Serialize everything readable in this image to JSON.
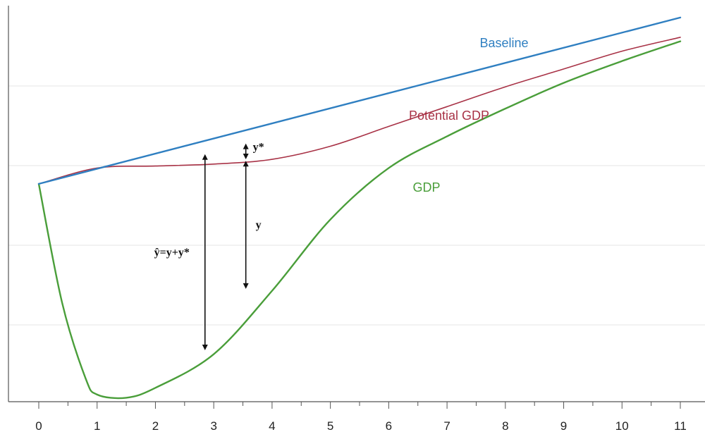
{
  "chart_data": {
    "type": "line",
    "title": "",
    "xlabel": "",
    "ylabel": "",
    "xlim": [
      0,
      11
    ],
    "ylim": [
      0,
      100
    ],
    "grid": true,
    "x_ticks": [
      "0",
      "1",
      "2",
      "3",
      "4",
      "5",
      "6",
      "7",
      "8",
      "9",
      "10",
      "11"
    ],
    "series": [
      {
        "name": "Baseline",
        "color": "#2f7fc1",
        "points": [
          [
            0,
            55
          ],
          [
            11,
            97
          ]
        ]
      },
      {
        "name": "Potential GDP",
        "color": "#a83246",
        "points": [
          [
            0,
            55
          ],
          [
            1,
            59
          ],
          [
            2,
            59.5
          ],
          [
            3,
            60
          ],
          [
            4,
            61.2
          ],
          [
            5,
            64.5
          ],
          [
            6,
            69.5
          ],
          [
            7,
            74.5
          ],
          [
            8,
            79.5
          ],
          [
            9,
            84
          ],
          [
            10,
            88.5
          ],
          [
            11,
            92
          ]
        ]
      },
      {
        "name": "GDP",
        "color": "#4a9e3a",
        "points": [
          [
            0,
            55
          ],
          [
            0.4,
            25
          ],
          [
            0.8,
            6
          ],
          [
            1,
            1.8
          ],
          [
            1.5,
            1
          ],
          [
            2,
            3.5
          ],
          [
            3,
            12
          ],
          [
            4,
            28
          ],
          [
            5,
            46
          ],
          [
            6,
            59
          ],
          [
            7,
            67
          ],
          [
            8,
            74
          ],
          [
            9,
            80.5
          ],
          [
            10,
            86
          ],
          [
            11,
            91
          ]
        ]
      }
    ],
    "annotations": [
      {
        "label": "ŷ=y+y*",
        "x": 2.85,
        "from": 13,
        "to": 62.5
      },
      {
        "label": "y",
        "x": 3.55,
        "from": 28.5,
        "to": 60.8
      },
      {
        "label": "y*",
        "x": 3.55,
        "from": 61.2,
        "to": 65.2
      }
    ]
  }
}
